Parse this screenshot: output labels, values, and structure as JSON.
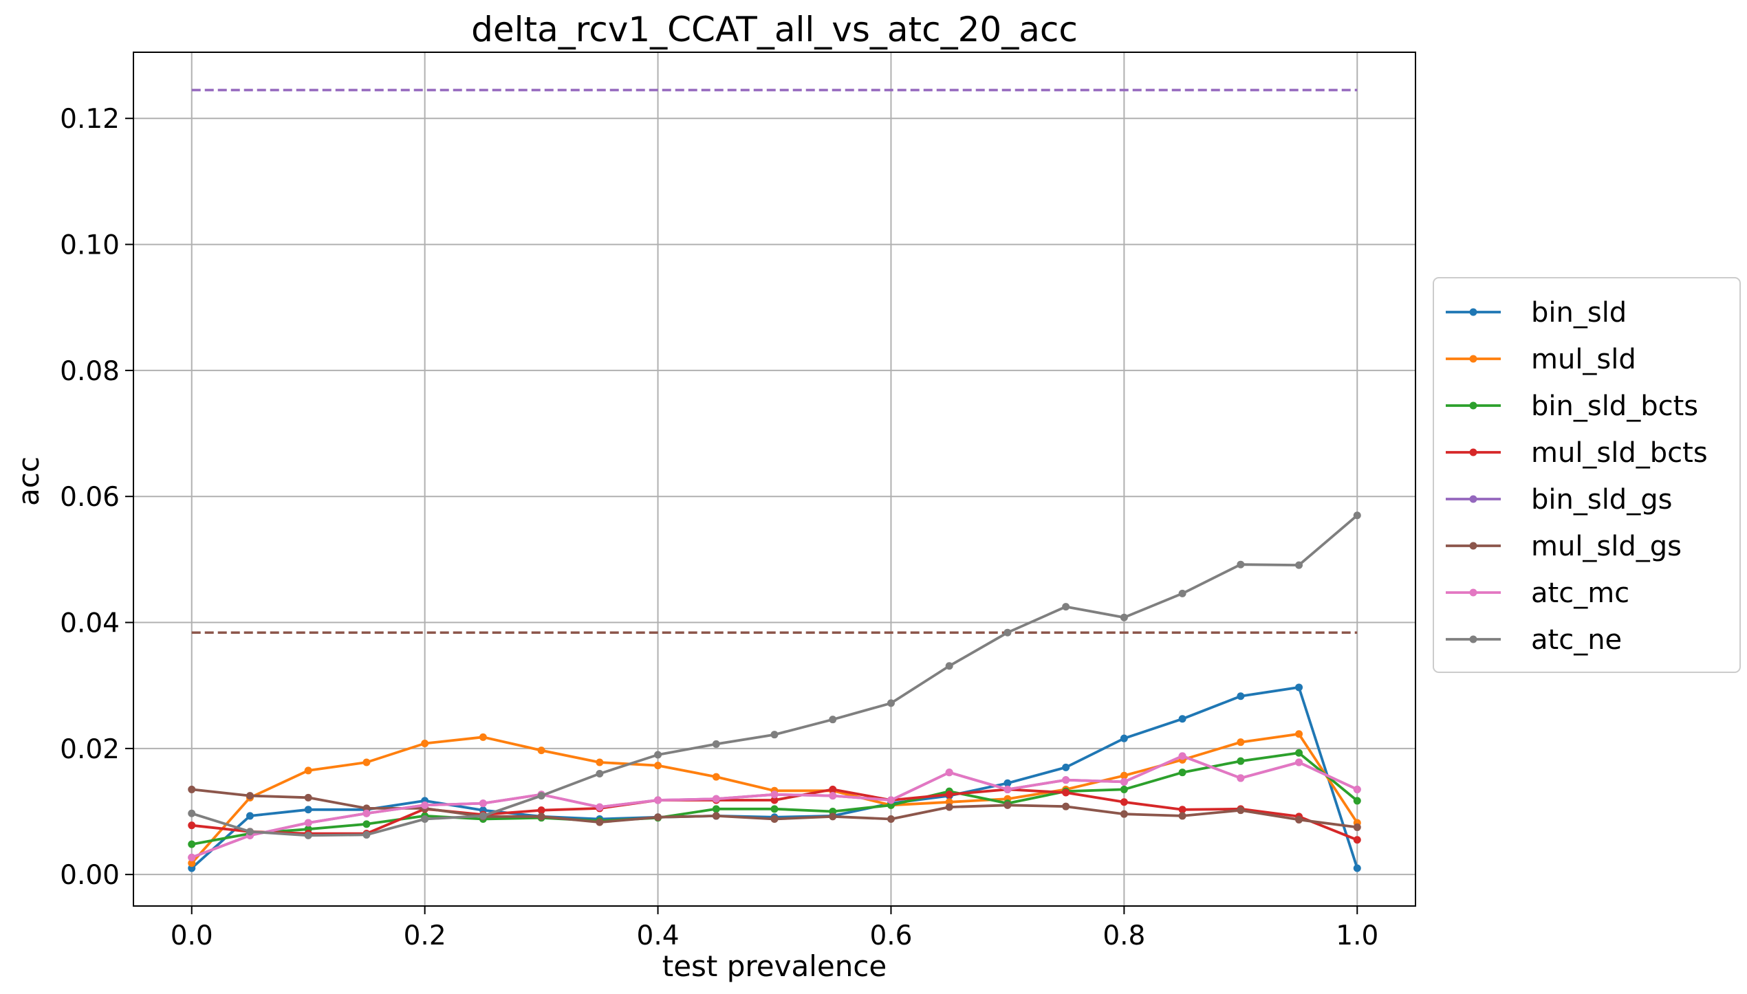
{
  "chart_data": {
    "type": "line",
    "title": "delta_rcv1_CCAT_all_vs_atc_20_acc",
    "xlabel": "test prevalence",
    "ylabel": "acc",
    "xlim": [
      -0.05,
      1.05
    ],
    "ylim": [
      -0.005,
      0.1305
    ],
    "xticks": [
      0.0,
      0.2,
      0.4,
      0.6,
      0.8,
      1.0
    ],
    "xtick_labels": [
      "0.0",
      "0.2",
      "0.4",
      "0.6",
      "0.8",
      "1.0"
    ],
    "yticks": [
      0.0,
      0.02,
      0.04,
      0.06,
      0.08,
      0.1,
      0.12
    ],
    "ytick_labels": [
      "0.00",
      "0.02",
      "0.04",
      "0.06",
      "0.08",
      "0.10",
      "0.12"
    ],
    "grid": true,
    "legend_position": "outside right",
    "x": [
      0.0,
      0.05,
      0.1,
      0.15,
      0.2,
      0.25,
      0.3,
      0.35,
      0.4,
      0.45,
      0.5,
      0.55,
      0.6,
      0.65,
      0.7,
      0.75,
      0.8,
      0.85,
      0.9,
      0.95,
      1.0
    ],
    "series": [
      {
        "name": "bin_sld",
        "color": "#1f77b4",
        "values": [
          0.001,
          0.0093,
          0.0103,
          0.0103,
          0.0117,
          0.0102,
          0.0092,
          0.0088,
          0.0091,
          0.0093,
          0.0091,
          0.0093,
          0.0113,
          0.0125,
          0.0145,
          0.017,
          0.0216,
          0.0247,
          0.0283,
          0.0297,
          0.001
        ]
      },
      {
        "name": "mul_sld",
        "color": "#ff7f0e",
        "values": [
          0.0018,
          0.0122,
          0.0165,
          0.0178,
          0.0208,
          0.0218,
          0.0197,
          0.0178,
          0.0173,
          0.0155,
          0.0133,
          0.0133,
          0.011,
          0.0115,
          0.012,
          0.0135,
          0.0157,
          0.0182,
          0.021,
          0.0223,
          0.0082
        ]
      },
      {
        "name": "bin_sld_bcts",
        "color": "#2ca02c",
        "values": [
          0.0048,
          0.0065,
          0.0072,
          0.008,
          0.0093,
          0.0088,
          0.009,
          0.0085,
          0.009,
          0.0104,
          0.0104,
          0.01,
          0.011,
          0.0132,
          0.0113,
          0.0132,
          0.0135,
          0.0162,
          0.018,
          0.0193,
          0.0117
        ]
      },
      {
        "name": "mul_sld_bcts",
        "color": "#d62728",
        "values": [
          0.0078,
          0.0068,
          0.0065,
          0.0065,
          0.0104,
          0.0095,
          0.0102,
          0.0105,
          0.0118,
          0.0118,
          0.0118,
          0.0135,
          0.0118,
          0.0127,
          0.0135,
          0.013,
          0.0115,
          0.0103,
          0.0104,
          0.0092,
          0.0055
        ]
      },
      {
        "name": "bin_sld_gs",
        "color": "#9467bd",
        "values": [
          0.0027,
          0.0062,
          0.0082,
          0.0097,
          0.011,
          0.0113,
          0.0127,
          0.0107,
          0.0118,
          0.012,
          0.0127,
          0.0125,
          0.0118,
          0.0162,
          0.0135,
          0.015,
          0.0147,
          0.0188,
          0.0153,
          0.0178,
          0.0135
        ]
      },
      {
        "name": "mul_sld_gs",
        "color": "#8c564b",
        "values": [
          0.0135,
          0.0125,
          0.0122,
          0.0105,
          0.0105,
          0.0092,
          0.0092,
          0.0083,
          0.0091,
          0.0093,
          0.0088,
          0.0092,
          0.0088,
          0.0107,
          0.011,
          0.0108,
          0.0096,
          0.0093,
          0.0102,
          0.0087,
          0.0075
        ]
      },
      {
        "name": "atc_mc",
        "color": "#e377c2",
        "values": [
          0.0027,
          0.0062,
          0.0082,
          0.0097,
          0.011,
          0.0113,
          0.0127,
          0.0107,
          0.0118,
          0.012,
          0.0127,
          0.0125,
          0.0118,
          0.0162,
          0.0135,
          0.015,
          0.0147,
          0.0188,
          0.0153,
          0.0178,
          0.0135
        ]
      },
      {
        "name": "atc_ne",
        "color": "#7f7f7f",
        "values": [
          0.0097,
          0.0068,
          0.0062,
          0.0063,
          0.0088,
          0.0093,
          0.0125,
          0.016,
          0.019,
          0.0207,
          0.0222,
          0.0246,
          0.0272,
          0.0331,
          0.0384,
          0.0425,
          0.0408,
          0.0446,
          0.0492,
          0.0491,
          0.057
        ]
      }
    ],
    "reference_lines": [
      {
        "color": "#9467bd",
        "style": "dashed",
        "y": 0.1245,
        "x_range": [
          0.0,
          1.0
        ]
      },
      {
        "color": "#8c564b",
        "style": "dashed",
        "y": 0.0384,
        "x_range": [
          0.0,
          1.0
        ]
      }
    ]
  }
}
